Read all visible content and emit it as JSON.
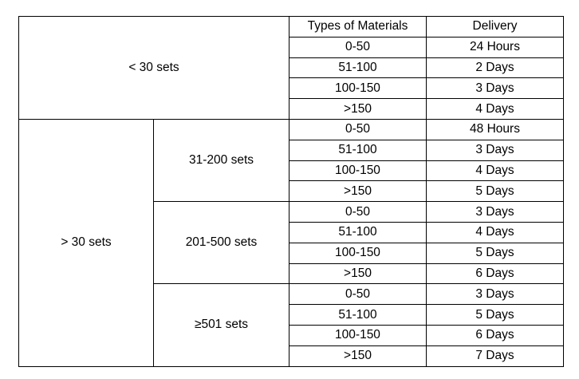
{
  "header": {
    "materials": "Types of Materials",
    "delivery": "Delivery"
  },
  "groups": [
    {
      "label": "< 30 sets",
      "rows": [
        {
          "materials": "0-50",
          "delivery": "24 Hours"
        },
        {
          "materials": "51-100",
          "delivery": "2 Days"
        },
        {
          "materials": "100-150",
          "delivery": "3 Days"
        },
        {
          "materials": ">150",
          "delivery": "4 Days"
        }
      ]
    },
    {
      "label": "> 30 sets",
      "subgroups": [
        {
          "label": "31-200 sets",
          "rows": [
            {
              "materials": "0-50",
              "delivery": "48 Hours"
            },
            {
              "materials": "51-100",
              "delivery": "3 Days"
            },
            {
              "materials": "100-150",
              "delivery": "4 Days"
            },
            {
              "materials": ">150",
              "delivery": "5 Days"
            }
          ]
        },
        {
          "label": "201-500 sets",
          "rows": [
            {
              "materials": "0-50",
              "delivery": "3 Days"
            },
            {
              "materials": "51-100",
              "delivery": "4 Days"
            },
            {
              "materials": "100-150",
              "delivery": "5 Days"
            },
            {
              "materials": ">150",
              "delivery": "6 Days"
            }
          ]
        },
        {
          "label": "≥501 sets",
          "rows": [
            {
              "materials": "0-50",
              "delivery": "3 Days"
            },
            {
              "materials": "51-100",
              "delivery": "5 Days"
            },
            {
              "materials": "100-150",
              "delivery": "6 Days"
            },
            {
              "materials": ">150",
              "delivery": "7 Days"
            }
          ]
        }
      ]
    }
  ]
}
